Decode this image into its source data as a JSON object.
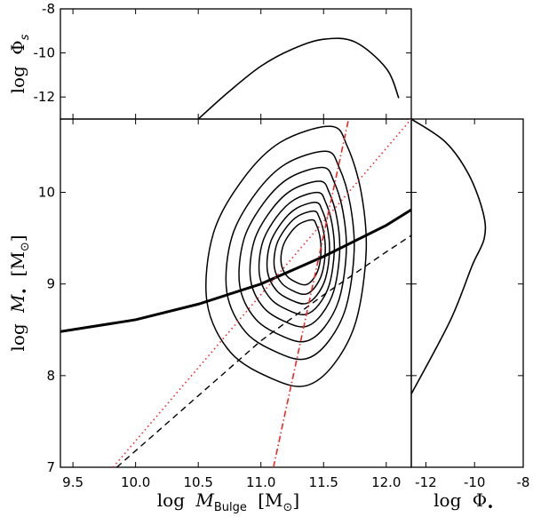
{
  "chart_data": {
    "type": "line",
    "panels": {
      "main": {
        "xlabel_base": "log",
        "xlabel_var": "M",
        "xlabel_sub": "Bulge",
        "xlabel_unit": "[M",
        "xlabel_unit_sub": "⊙",
        "xlabel_unit_end": "]",
        "ylabel_base": "log",
        "ylabel_var": "M",
        "ylabel_sub": "•",
        "ylabel_unit": "[M",
        "ylabel_unit_sub": "⊙",
        "ylabel_unit_end": "]",
        "xlim": [
          9.4,
          12.2
        ],
        "ylim": [
          7.0,
          10.8
        ],
        "xticks": [
          9.5,
          10.0,
          10.5,
          11.0,
          11.5,
          12.0
        ],
        "xtick_labels": [
          "9.5",
          "10.0",
          "10.5",
          "11.0",
          "11.5",
          "12.0"
        ],
        "yticks": [
          7,
          8,
          9,
          10
        ],
        "ytick_labels": [
          "7",
          "8",
          "9",
          "10"
        ],
        "contours": {
          "center": [
            11.36,
            9.36
          ],
          "scales": [
            1.0,
            0.8,
            0.67,
            0.56,
            0.47,
            0.39,
            0.32,
            0.25
          ]
        },
        "series": [
          {
            "style": "thick-solid",
            "color": "#000000",
            "x": [
              9.4,
              10.0,
              10.5,
              11.0,
              11.5,
              12.0,
              12.2
            ],
            "y": [
              8.48,
              8.61,
              8.78,
              9.0,
              9.3,
              9.64,
              9.81
            ]
          },
          {
            "style": "dashed",
            "color": "#000000",
            "x": [
              9.85,
              10.5,
              11.0,
              11.5,
              12.0,
              12.2
            ],
            "y": [
              7.0,
              7.78,
              8.38,
              8.88,
              9.35,
              9.53
            ]
          },
          {
            "style": "dotted",
            "color": "#e8292b",
            "x": [
              9.82,
              12.2
            ],
            "y": [
              7.0,
              10.8
            ]
          },
          {
            "style": "dash-dot",
            "color": "#e8292b",
            "x": [
              11.1,
              11.7
            ],
            "y": [
              7.0,
              10.8
            ]
          }
        ]
      },
      "top": {
        "ylabel_base": "log",
        "ylabel_var": "Φ",
        "ylabel_sub": "s",
        "xlim": [
          9.4,
          12.2
        ],
        "ylim": [
          -13.0,
          -8.0
        ],
        "yticks": [
          -12,
          -10,
          -8
        ],
        "ytick_labels": [
          "-12",
          "-10",
          "-8"
        ],
        "series": [
          {
            "style": "solid",
            "color": "#000000",
            "x": [
              10.5,
              10.75,
              11.0,
              11.25,
              11.5,
              11.75,
              12.0,
              12.1
            ],
            "y": [
              -13.0,
              -11.73,
              -10.6,
              -9.83,
              -9.38,
              -9.5,
              -10.7,
              -12.05
            ]
          }
        ]
      },
      "right": {
        "xlabel_base": "log",
        "xlabel_var": "Φ",
        "xlabel_sub": "•",
        "xlim": [
          -12.6,
          -8.0
        ],
        "ylim": [
          7.0,
          10.8
        ],
        "xticks": [
          -12,
          -10,
          -8
        ],
        "xtick_labels": [
          "-12",
          "-10",
          "-8"
        ],
        "series": [
          {
            "style": "solid",
            "color": "#000000",
            "x": [
              -12.6,
              -11.0,
              -10.1,
              -9.6,
              -9.65,
              -10.25,
              -11.2,
              -12.6
            ],
            "y": [
              7.8,
              8.6,
              9.2,
              9.5,
              9.78,
              10.2,
              10.55,
              10.8
            ]
          }
        ]
      }
    }
  }
}
